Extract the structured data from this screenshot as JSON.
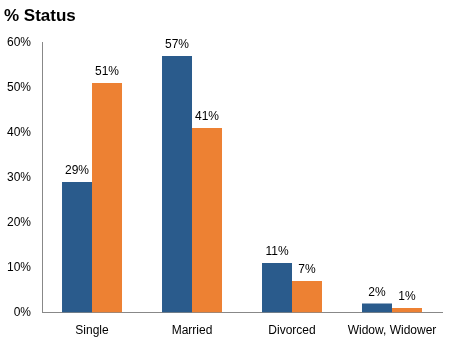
{
  "chart_data": {
    "type": "bar",
    "title": "% Status",
    "categories": [
      "Single",
      "Married",
      "Divorced",
      "Widow, Widower"
    ],
    "series": [
      {
        "color": "#2a5b8c",
        "values": [
          29,
          57,
          11,
          2
        ],
        "value_labels": [
          "29%",
          "57%",
          "11%",
          "2%"
        ]
      },
      {
        "color": "#ed8133",
        "values": [
          51,
          41,
          7,
          1
        ],
        "value_labels": [
          "51%",
          "41%",
          "7%",
          "1%"
        ]
      }
    ],
    "ylim": [
      0,
      60
    ],
    "yticks": [
      {
        "value": 0,
        "label": "0%"
      },
      {
        "value": 10,
        "label": "10%"
      },
      {
        "value": 20,
        "label": "20%"
      },
      {
        "value": 30,
        "label": "30%"
      },
      {
        "value": 40,
        "label": "40%"
      },
      {
        "value": 50,
        "label": "50%"
      },
      {
        "value": 60,
        "label": "60%"
      }
    ],
    "grid": false,
    "data_labels": true
  }
}
